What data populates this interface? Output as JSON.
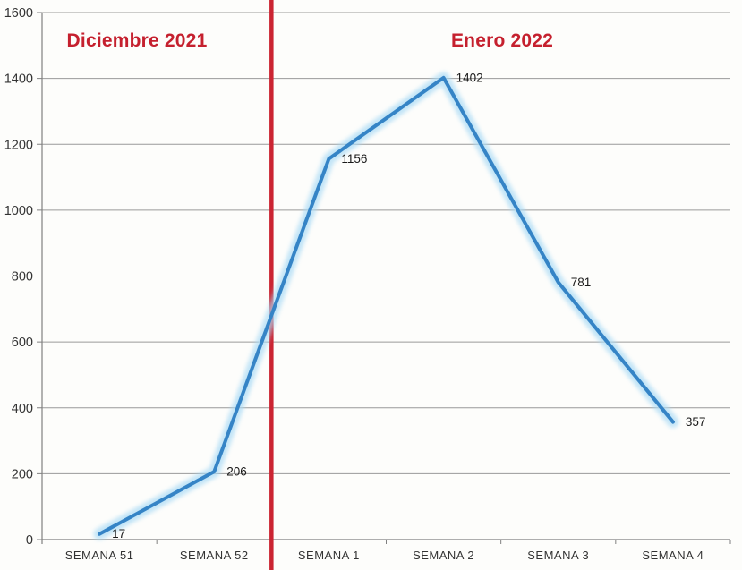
{
  "chart_data": {
    "type": "line",
    "categories": [
      "SEMANA 51",
      "SEMANA 52",
      "SEMANA 1",
      "SEMANA 2",
      "SEMANA 3",
      "SEMANA 4"
    ],
    "values": [
      17,
      206,
      1156,
      1402,
      781,
      357
    ],
    "data_labels": [
      "17",
      "206",
      "1156",
      "1402",
      "781",
      "357"
    ],
    "title_left": "Diciembre 2021",
    "title_right": "Enero 2022",
    "xlabel": "",
    "ylabel": "",
    "ylim": [
      0,
      1600
    ],
    "yticks": [
      0,
      200,
      400,
      600,
      800,
      1000,
      1200,
      1400,
      1600
    ],
    "grid": true,
    "legend": false,
    "divider_after_category_index": 1,
    "colors": {
      "line": "#3584C6",
      "line_glow": "#A9DAF5",
      "divider": "#CB2432",
      "section_title": "#C5202E",
      "grid": "#9A9A9A",
      "axis": "#808080",
      "tick_label": "#333333",
      "data_label": "#1A1A1A",
      "background": "#FDFDFB"
    }
  }
}
